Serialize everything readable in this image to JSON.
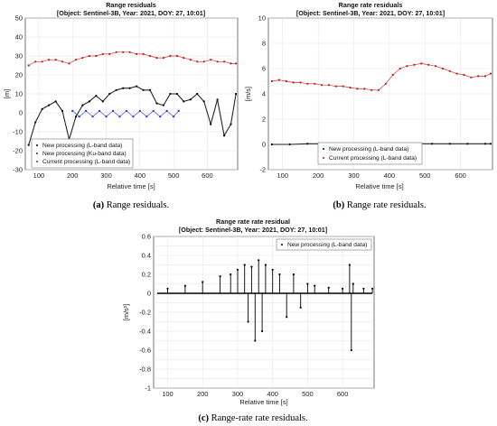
{
  "chart_data": [
    {
      "type": "scatter",
      "title": "Range residuals",
      "subtitle": "[Object: Sentinel-3B, Year: 2021, DOY: 27, 10:01]",
      "xlabel": "Relative time [s]",
      "ylabel": "[m]",
      "xlim": [
        60,
        690
      ],
      "ylim": [
        -30,
        50
      ],
      "xticks": [
        "100",
        "200",
        "300",
        "400",
        "500",
        "600"
      ],
      "yticks": [
        "-30",
        "-20",
        "-10",
        "0",
        "10",
        "20",
        "30",
        "40",
        "50"
      ],
      "grid": true,
      "legend": "bottom-left",
      "caption_label": "(a)",
      "caption_text": "Range residuals.",
      "series": [
        {
          "name": "New processing (L-band data)",
          "color": "#000000",
          "x": [
            70,
            90,
            110,
            130,
            150,
            170,
            190,
            210,
            230,
            250,
            270,
            290,
            310,
            330,
            350,
            370,
            390,
            410,
            430,
            450,
            470,
            490,
            510,
            530,
            550,
            570,
            590,
            610,
            630,
            650,
            670,
            685
          ],
          "y": [
            -17,
            -5,
            2,
            4,
            6,
            1,
            -14,
            -2,
            4,
            6,
            9,
            6,
            10,
            12,
            13,
            13,
            14,
            12,
            12,
            5,
            4,
            10,
            10,
            6,
            7,
            10,
            6,
            -6,
            7,
            -12,
            -6,
            10
          ]
        },
        {
          "name": "New processing (Ku-band data)",
          "color": "#1f2dd6",
          "x": [
            200,
            220,
            240,
            260,
            280,
            300,
            320,
            340,
            360,
            380,
            400,
            420,
            440,
            460,
            480,
            500,
            515
          ],
          "y": [
            1,
            -2,
            1,
            -2,
            1,
            -2,
            1,
            -2,
            1,
            -2,
            1,
            -2,
            1,
            -2,
            1,
            -2,
            1
          ]
        },
        {
          "name": "Current processing (L-band data)",
          "color": "#cc1111",
          "x": [
            70,
            90,
            110,
            130,
            150,
            170,
            190,
            210,
            230,
            250,
            270,
            290,
            310,
            330,
            350,
            370,
            390,
            410,
            430,
            450,
            470,
            490,
            510,
            530,
            550,
            570,
            590,
            610,
            630,
            650,
            670,
            685
          ],
          "y": [
            25,
            27,
            27,
            28,
            28,
            27,
            26,
            28,
            29,
            30,
            30,
            31,
            31,
            32,
            32,
            32,
            31,
            31,
            30,
            29,
            29,
            30,
            30,
            29,
            28,
            27,
            27,
            28,
            27,
            27,
            26,
            26
          ]
        }
      ]
    },
    {
      "type": "scatter",
      "title": "Range rate residuals",
      "subtitle": "[Object: Sentinel-3B, Year: 2021, DOY: 27, 10:01]",
      "xlabel": "Relative time [s]",
      "ylabel": "[m/s]",
      "xlim": [
        60,
        690
      ],
      "ylim": [
        -2,
        10
      ],
      "xticks": [
        "100",
        "200",
        "300",
        "400",
        "500",
        "600"
      ],
      "yticks": [
        "-2",
        "0",
        "2",
        "4",
        "6",
        "8",
        "10"
      ],
      "grid": true,
      "legend": "bottom-left",
      "caption_label": "(b)",
      "caption_text": "Range rate residuals.",
      "series": [
        {
          "name": "New processing (L-band data)",
          "color": "#000000",
          "x": [
            70,
            120,
            170,
            220,
            270,
            320,
            370,
            420,
            470,
            520,
            570,
            620,
            670,
            685
          ],
          "y": [
            0.0,
            0.0,
            0.05,
            0.05,
            0.05,
            0.05,
            0.0,
            0.05,
            0.05,
            0.05,
            0.05,
            0.05,
            0.05,
            0.05
          ]
        },
        {
          "name": "Current processing (L-band data)",
          "color": "#cc1111",
          "x": [
            70,
            90,
            110,
            130,
            150,
            170,
            190,
            210,
            230,
            250,
            270,
            290,
            310,
            330,
            350,
            370,
            390,
            410,
            430,
            450,
            470,
            490,
            510,
            530,
            550,
            570,
            590,
            610,
            630,
            650,
            670,
            685
          ],
          "y": [
            5.0,
            5.1,
            5.0,
            4.9,
            4.9,
            4.8,
            4.8,
            4.7,
            4.7,
            4.6,
            4.6,
            4.5,
            4.4,
            4.4,
            4.3,
            4.3,
            4.8,
            5.5,
            6.0,
            6.2,
            6.3,
            6.4,
            6.3,
            6.2,
            6.0,
            5.8,
            5.6,
            5.5,
            5.3,
            5.4,
            5.4,
            5.6
          ]
        }
      ]
    },
    {
      "type": "scatter",
      "title": "Range rate rate residual",
      "subtitle": "[Object: Sentinel-3B, Year: 2021, DOY: 27, 10:01]",
      "xlabel": "Relative time [s]",
      "ylabel": "[m/s²]",
      "xlim": [
        60,
        690
      ],
      "ylim": [
        -1,
        0.6
      ],
      "xticks": [
        "100",
        "200",
        "300",
        "400",
        "500",
        "600"
      ],
      "yticks": [
        "-1",
        "-0.9",
        "-0.8",
        "-0.7",
        "-0.6",
        "-0.5",
        "-0.4",
        "-0.3",
        "-0.2",
        "-0.1",
        "0",
        "0.1",
        "0.2",
        "0.3",
        "0.4",
        "0.5",
        "0.6"
      ],
      "grid": true,
      "legend": "top-right",
      "caption_label": "(c)",
      "caption_text": "Range-rate rate residuals.",
      "series": [
        {
          "name": "New processing (L-band data)",
          "color": "#000000",
          "x": [
            100,
            150,
            200,
            250,
            280,
            300,
            320,
            330,
            340,
            350,
            360,
            370,
            380,
            400,
            420,
            440,
            460,
            480,
            500,
            520,
            560,
            600,
            620,
            625,
            630,
            660,
            685
          ],
          "y": [
            0.05,
            0.08,
            0.12,
            0.18,
            0.2,
            0.25,
            0.3,
            -0.3,
            0.28,
            -0.5,
            0.35,
            -0.4,
            0.3,
            0.25,
            0.2,
            -0.25,
            0.2,
            -0.15,
            0.1,
            0.08,
            0.06,
            0.05,
            0.3,
            -0.6,
            0.1,
            0.05,
            0.05
          ]
        }
      ]
    }
  ]
}
